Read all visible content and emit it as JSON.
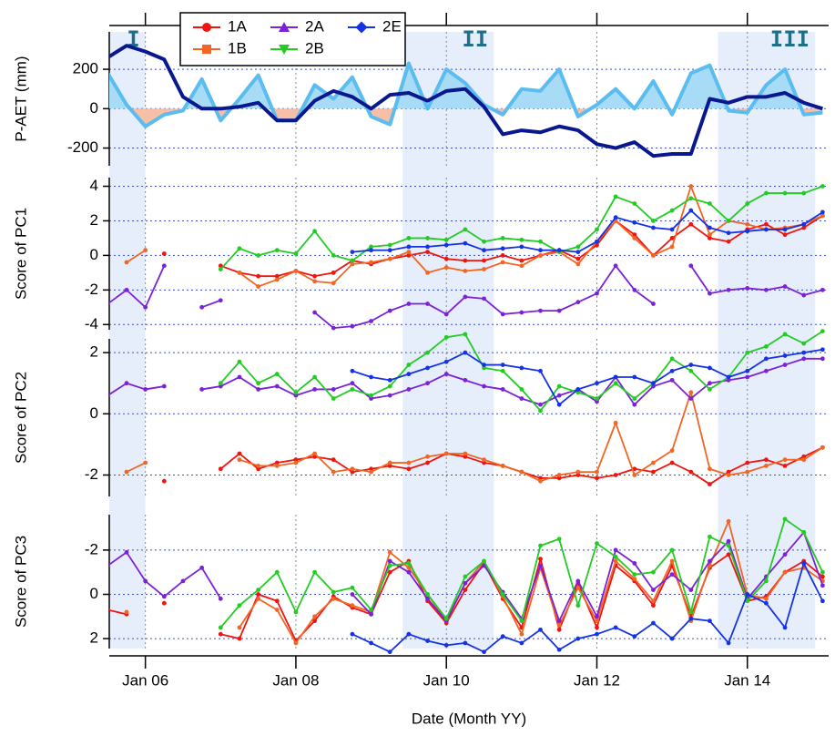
{
  "chart_data": [
    {
      "type": "line",
      "ylabel": "P-AET (mm)",
      "ylim": [
        -290,
        390
      ],
      "yticks": [
        -200,
        0,
        200
      ],
      "grid": true,
      "shaded_periods": [
        [
          2005.52,
          2006.0
        ],
        [
          2009.42,
          2010.63
        ],
        [
          2013.61,
          2014.9
        ]
      ],
      "period_labels": [
        "I",
        "II",
        "III"
      ],
      "period_color": "#1f6f8b",
      "x": [
        2005.5,
        2005.75,
        2006,
        2006.25,
        2006.5,
        2006.75,
        2007,
        2007.25,
        2007.5,
        2007.75,
        2008,
        2008.25,
        2008.5,
        2008.75,
        2009,
        2009.25,
        2009.5,
        2009.75,
        2010,
        2010.25,
        2010.5,
        2010.75,
        2011,
        2011.25,
        2011.5,
        2011.75,
        2012,
        2012.25,
        2012.5,
        2012.75,
        2013,
        2013.25,
        2013.5,
        2013.75,
        2014,
        2014.25,
        2014.5,
        2014.75,
        2015
      ],
      "series": [
        {
          "color": "#5bbcf0",
          "fill_positive": "#a8dcf6",
          "fill_negative": "#f7bfa8",
          "values": [
            180,
            20,
            -90,
            -30,
            -10,
            150,
            -60,
            50,
            170,
            -60,
            -60,
            120,
            50,
            160,
            -40,
            -80,
            230,
            0,
            200,
            130,
            20,
            -30,
            100,
            90,
            200,
            -40,
            20,
            100,
            0,
            140,
            -30,
            180,
            220,
            -10,
            -20,
            120,
            200,
            -30,
            -20
          ]
        },
        {
          "color": "#0a1890",
          "values": [
            260,
            320,
            290,
            250,
            60,
            0,
            0,
            10,
            30,
            -60,
            -60,
            40,
            90,
            60,
            0,
            70,
            80,
            40,
            90,
            100,
            10,
            -130,
            -110,
            -120,
            -90,
            -110,
            -180,
            -200,
            -170,
            -240,
            -230,
            -230,
            50,
            30,
            60,
            60,
            80,
            30,
            0
          ]
        }
      ]
    },
    {
      "type": "line",
      "ylabel": "Score of PC1",
      "ylim": [
        -4.3,
        4.5
      ],
      "yticks": [
        -4,
        -2,
        0,
        2,
        4
      ],
      "grid": true,
      "x": [
        2005.5,
        2005.75,
        2006,
        2006.25,
        2006.5,
        2006.75,
        2007,
        2007.25,
        2007.5,
        2007.75,
        2008,
        2008.25,
        2008.5,
        2008.75,
        2009,
        2009.25,
        2009.5,
        2009.75,
        2010,
        2010.25,
        2010.5,
        2010.75,
        2011,
        2011.25,
        2011.5,
        2011.75,
        2012,
        2012.25,
        2012.5,
        2012.75,
        2013,
        2013.25,
        2013.5,
        2013.75,
        2014,
        2014.25,
        2014.5,
        2014.75,
        2015
      ],
      "series": [
        {
          "name": "1A",
          "color": "#f0140f",
          "marker": "circle",
          "values": [
            null,
            null,
            null,
            0.1,
            null,
            null,
            -0.6,
            -1.0,
            -1.2,
            -1.2,
            -0.9,
            -1.2,
            -1.0,
            -0.3,
            -0.5,
            -0.2,
            0.0,
            0.2,
            -0.2,
            -0.3,
            -0.3,
            0.0,
            -0.3,
            0.0,
            0.3,
            -0.2,
            0.6,
            2.0,
            1.2,
            0.0,
            1.0,
            1.8,
            1.0,
            0.8,
            1.5,
            1.8,
            1.2,
            1.6,
            2.3
          ]
        },
        {
          "name": "1B",
          "color": "#f26522",
          "marker": "square",
          "values": [
            null,
            -0.4,
            0.3,
            null,
            null,
            null,
            null,
            -1.0,
            -1.8,
            -1.4,
            -0.9,
            -1.5,
            -1.6,
            -0.5,
            -0.4,
            -0.2,
            0.2,
            -1.0,
            -0.7,
            -0.9,
            -0.8,
            -0.4,
            -0.6,
            0.0,
            0.2,
            -0.5,
            0.8,
            2.0,
            1.0,
            0.0,
            0.5,
            4.0,
            1.2,
            2.0,
            1.8,
            1.5,
            1.6,
            1.8,
            2.3
          ]
        },
        {
          "name": "2A",
          "color": "#7b22d6",
          "marker": "triangle-up",
          "values": [
            -2.8,
            -2.0,
            -3.0,
            -0.6,
            null,
            -3.0,
            -2.6,
            null,
            null,
            null,
            null,
            -3.3,
            -4.2,
            -4.1,
            -3.8,
            -3.2,
            -2.8,
            -2.8,
            -3.4,
            -2.4,
            -2.5,
            -3.4,
            -3.3,
            -3.2,
            -3.2,
            -2.7,
            -2.2,
            -0.6,
            -2.0,
            -2.8,
            null,
            -0.6,
            -2.2,
            -2.0,
            -1.9,
            -2.0,
            -1.8,
            -2.3,
            -2.0
          ]
        },
        {
          "name": "2B",
          "color": "#22cc22",
          "marker": "triangle-down",
          "values": [
            null,
            null,
            null,
            null,
            null,
            null,
            -0.8,
            0.4,
            0.0,
            0.3,
            0.1,
            1.4,
            0.0,
            -0.3,
            0.5,
            0.6,
            1.0,
            1.0,
            0.9,
            1.5,
            0.8,
            1.0,
            0.9,
            0.8,
            0.2,
            0.5,
            1.5,
            3.4,
            3.0,
            2.0,
            2.6,
            3.3,
            3.0,
            2.0,
            3.0,
            3.6,
            3.6,
            3.6,
            4.0
          ]
        },
        {
          "name": "2E",
          "color": "#1433e6",
          "marker": "diamond",
          "values": [
            null,
            null,
            null,
            null,
            null,
            null,
            null,
            null,
            null,
            null,
            null,
            null,
            null,
            0.2,
            0.3,
            0.3,
            0.5,
            0.5,
            0.6,
            0.7,
            0.3,
            0.4,
            0.5,
            0.3,
            0.3,
            0.2,
            0.8,
            2.2,
            1.9,
            1.6,
            1.5,
            2.6,
            1.6,
            1.3,
            1.4,
            1.5,
            1.5,
            1.8,
            2.5
          ]
        }
      ]
    },
    {
      "type": "line",
      "ylabel": "Score of PC2",
      "ylim": [
        -2.7,
        2.45
      ],
      "yticks": [
        -2,
        0,
        2
      ],
      "grid": true,
      "x": [
        2005.5,
        2005.75,
        2006,
        2006.25,
        2006.5,
        2006.75,
        2007,
        2007.25,
        2007.5,
        2007.75,
        2008,
        2008.25,
        2008.5,
        2008.75,
        2009,
        2009.25,
        2009.5,
        2009.75,
        2010,
        2010.25,
        2010.5,
        2010.75,
        2011,
        2011.25,
        2011.5,
        2011.75,
        2012,
        2012.25,
        2012.5,
        2012.75,
        2013,
        2013.25,
        2013.5,
        2013.75,
        2014,
        2014.25,
        2014.5,
        2014.75,
        2015
      ],
      "series": [
        {
          "color": "#f0140f",
          "values": [
            null,
            null,
            null,
            -2.2,
            null,
            null,
            -1.8,
            -1.3,
            -1.8,
            -1.6,
            -1.5,
            -1.4,
            -1.5,
            -1.9,
            -1.8,
            -1.7,
            -1.8,
            -1.6,
            -1.3,
            -1.4,
            -1.6,
            -1.7,
            -1.9,
            -2.1,
            -2.1,
            -2.0,
            -2.1,
            -2.0,
            -1.8,
            -1.9,
            -1.6,
            -1.9,
            -2.3,
            -1.9,
            -1.6,
            -1.5,
            -1.7,
            -1.4,
            -1.1
          ]
        },
        {
          "color": "#f26522",
          "values": [
            null,
            -1.9,
            -1.6,
            null,
            null,
            null,
            null,
            -1.5,
            -1.7,
            -1.7,
            -1.6,
            -1.3,
            -1.9,
            -1.8,
            -1.9,
            -1.6,
            -1.6,
            -1.4,
            -1.3,
            -1.3,
            -1.5,
            -1.7,
            -1.9,
            -2.2,
            -2.0,
            -1.9,
            -1.9,
            -0.3,
            -2.0,
            -1.6,
            -1.2,
            0.7,
            -1.8,
            -2.0,
            -1.9,
            -1.7,
            -1.5,
            -1.5,
            -1.1
          ]
        },
        {
          "color": "#7b22d6",
          "values": [
            0.6,
            1.0,
            0.8,
            0.9,
            null,
            0.8,
            0.9,
            1.2,
            0.8,
            0.9,
            0.6,
            0.8,
            0.8,
            1.0,
            0.5,
            0.6,
            0.8,
            1.0,
            1.3,
            1.1,
            0.9,
            0.8,
            0.5,
            0.3,
            0.6,
            0.8,
            0.4,
            1.2,
            0.3,
            0.9,
            1.1,
            0.5,
            1.0,
            1.1,
            1.2,
            1.4,
            1.6,
            1.8,
            1.8
          ]
        },
        {
          "color": "#22cc22",
          "values": [
            null,
            null,
            null,
            null,
            null,
            null,
            1.0,
            1.7,
            1.0,
            1.3,
            0.7,
            1.2,
            0.5,
            0.8,
            0.6,
            0.9,
            1.6,
            2.0,
            2.5,
            2.6,
            1.5,
            1.4,
            0.8,
            0.1,
            0.9,
            0.7,
            0.5,
            1.0,
            0.5,
            1.0,
            1.8,
            1.4,
            0.8,
            1.2,
            2.0,
            2.2,
            2.6,
            2.3,
            2.7
          ]
        },
        {
          "color": "#1433e6",
          "values": [
            null,
            null,
            null,
            null,
            null,
            null,
            null,
            null,
            null,
            null,
            null,
            null,
            null,
            1.4,
            1.2,
            1.1,
            1.3,
            1.5,
            1.7,
            2.0,
            1.6,
            1.6,
            1.5,
            1.4,
            0.3,
            0.8,
            1.0,
            1.2,
            1.2,
            1.0,
            1.4,
            1.6,
            1.5,
            1.2,
            1.4,
            1.8,
            1.9,
            2.0,
            2.1
          ]
        }
      ]
    },
    {
      "type": "line",
      "ylabel": "Score of PC3",
      "ylim": [
        2.45,
        -3.6
      ],
      "yticks": [
        -2,
        0,
        2
      ],
      "grid": true,
      "xlabel": "Date (Month YY)",
      "xlim": [
        2005.52,
        2015.08
      ],
      "xticks": [
        {
          "value": 2006,
          "label": "Jan 06"
        },
        {
          "value": 2008,
          "label": "Jan 08"
        },
        {
          "value": 2010,
          "label": "Jan 10"
        },
        {
          "value": 2012,
          "label": "Jan 12"
        },
        {
          "value": 2014,
          "label": "Jan 14"
        }
      ],
      "x": [
        2005.5,
        2005.75,
        2006,
        2006.25,
        2006.5,
        2006.75,
        2007,
        2007.25,
        2007.5,
        2007.75,
        2008,
        2008.25,
        2008.5,
        2008.75,
        2009,
        2009.25,
        2009.5,
        2009.75,
        2010,
        2010.25,
        2010.5,
        2010.75,
        2011,
        2011.25,
        2011.5,
        2011.75,
        2012,
        2012.25,
        2012.5,
        2012.75,
        2013,
        2013.25,
        2013.5,
        2013.75,
        2014,
        2014.25,
        2014.5,
        2014.75,
        2015
      ],
      "series": [
        {
          "color": "#f0140f",
          "values": [
            0.7,
            0.9,
            null,
            0.4,
            null,
            null,
            1.8,
            2.0,
            0.0,
            0.3,
            2.1,
            1.2,
            0.1,
            0.6,
            0.9,
            -1.0,
            -1.5,
            0.3,
            1.3,
            -0.2,
            -1.4,
            0.2,
            1.5,
            -1.6,
            1.6,
            -0.5,
            1.5,
            -1.3,
            -0.6,
            0.5,
            -1.3,
            1.0,
            -1.2,
            -1.8,
            0.3,
            0.1,
            -1.0,
            -1.5,
            -0.8
          ]
        },
        {
          "color": "#f26522",
          "values": [
            null,
            0.8,
            null,
            null,
            null,
            null,
            null,
            1.5,
            0.2,
            0.7,
            2.2,
            1.0,
            0.2,
            0.5,
            0.8,
            -1.9,
            -1.2,
            0.0,
            1.2,
            -0.5,
            -1.5,
            0.1,
            1.8,
            -1.2,
            1.4,
            -0.3,
            1.2,
            -1.5,
            -0.7,
            0.3,
            -1.5,
            1.2,
            -1.3,
            -3.3,
            0.0,
            0.2,
            -1.0,
            -1.2,
            -0.6
          ]
        },
        {
          "color": "#7b22d6",
          "values": [
            -1.3,
            -1.9,
            -0.6,
            0.1,
            -0.6,
            -1.2,
            0.2,
            null,
            null,
            null,
            null,
            null,
            null,
            0.0,
            0.9,
            -1.5,
            -1.0,
            0.2,
            1.2,
            -0.5,
            -1.3,
            -0.1,
            1.1,
            -1.3,
            1.2,
            -0.6,
            1.0,
            -2.0,
            -1.4,
            -0.2,
            -0.9,
            -0.2,
            -1.5,
            -2.4,
            0.2,
            -0.8,
            -1.8,
            -2.8,
            -0.4
          ]
        },
        {
          "color": "#22cc22",
          "values": [
            null,
            null,
            null,
            null,
            null,
            null,
            1.5,
            0.5,
            -0.2,
            -1.0,
            0.8,
            -1.0,
            -0.1,
            -0.3,
            0.7,
            -1.3,
            -1.4,
            0.0,
            1.1,
            -0.8,
            -1.5,
            0.0,
            1.2,
            -2.2,
            -2.5,
            0.5,
            -2.3,
            -1.7,
            -0.9,
            -1.0,
            -2.0,
            0.8,
            -2.6,
            -2.2,
            0.3,
            -0.6,
            -3.4,
            -2.8,
            -1.0
          ]
        },
        {
          "color": "#1433e6",
          "values": [
            null,
            null,
            null,
            null,
            null,
            null,
            null,
            null,
            null,
            null,
            null,
            null,
            null,
            1.8,
            2.2,
            2.6,
            1.8,
            2.1,
            2.3,
            2.2,
            2.6,
            1.9,
            2.2,
            1.6,
            2.5,
            2.0,
            1.8,
            1.5,
            1.9,
            1.3,
            2.0,
            1.1,
            1.2,
            2.2,
            0.0,
            0.4,
            1.5,
            -1.4,
            0.3
          ]
        }
      ]
    }
  ]
}
